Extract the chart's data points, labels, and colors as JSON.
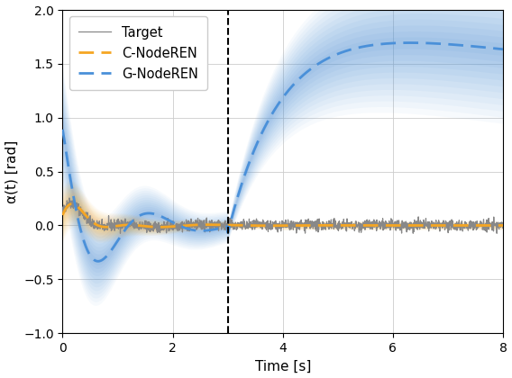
{
  "title": "",
  "xlabel": "Time [s]",
  "ylabel": "α(t) [rad]",
  "xlim": [
    0,
    8
  ],
  "ylim": [
    -1.0,
    2.0
  ],
  "xticks": [
    0,
    2,
    4,
    6,
    8
  ],
  "yticks": [
    -1.0,
    -0.5,
    0.0,
    0.5,
    1.0,
    1.5,
    2.0
  ],
  "vline_x": 3.0,
  "target_color": "#888888",
  "c_color": "#f5a623",
  "g_color": "#4a90d9",
  "figsize": [
    5.68,
    4.2
  ],
  "dpi": 100,
  "seed": 42
}
